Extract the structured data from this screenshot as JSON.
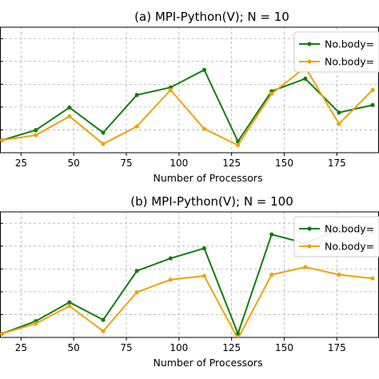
{
  "chart_data": [
    {
      "type": "line",
      "title": "(a) MPI-Python(V); N = 10",
      "xlabel": "Number of Processors",
      "ylabel": "",
      "x": [
        16,
        32,
        48,
        64,
        80,
        96,
        112,
        128,
        144,
        160,
        176,
        192
      ],
      "xticks": [
        25,
        50,
        75,
        100,
        125,
        150,
        175
      ],
      "xlim": [
        15,
        195
      ],
      "ylim": [
        0,
        10
      ],
      "grid": true,
      "legend_placement": "top-right",
      "series": [
        {
          "name": "No.body=",
          "color": "#107f10",
          "values": [
            1.0,
            1.8,
            3.6,
            1.6,
            4.6,
            5.2,
            6.6,
            0.9,
            4.9,
            5.9,
            3.2,
            3.8
          ]
        },
        {
          "name": "No.body=",
          "color": "#f0a30a",
          "values": [
            1.0,
            1.4,
            2.9,
            0.7,
            2.1,
            5.0,
            1.9,
            0.6,
            4.7,
            6.8,
            2.3,
            5.0
          ]
        }
      ]
    },
    {
      "type": "line",
      "title": "(b) MPI-Python(V); N = 100",
      "xlabel": "Number of Processors",
      "ylabel": "",
      "x": [
        16,
        32,
        48,
        64,
        80,
        96,
        112,
        128,
        144,
        160,
        176,
        192
      ],
      "xticks": [
        25,
        50,
        75,
        100,
        125,
        150,
        175
      ],
      "xlim": [
        15,
        195
      ],
      "ylim": [
        0,
        10
      ],
      "grid": true,
      "legend_placement": "top-right",
      "series": [
        {
          "name": "No.body=",
          "color": "#107f10",
          "values": [
            0.3,
            1.3,
            2.8,
            1.4,
            5.3,
            6.3,
            7.1,
            0.3,
            8.2,
            7.5,
            8.6,
            8.4
          ]
        },
        {
          "name": "No.body=",
          "color": "#f0a30a",
          "values": [
            0.3,
            1.1,
            2.5,
            0.5,
            3.6,
            4.6,
            4.9,
            -0.1,
            5.0,
            5.6,
            5.0,
            4.7
          ]
        }
      ]
    }
  ]
}
